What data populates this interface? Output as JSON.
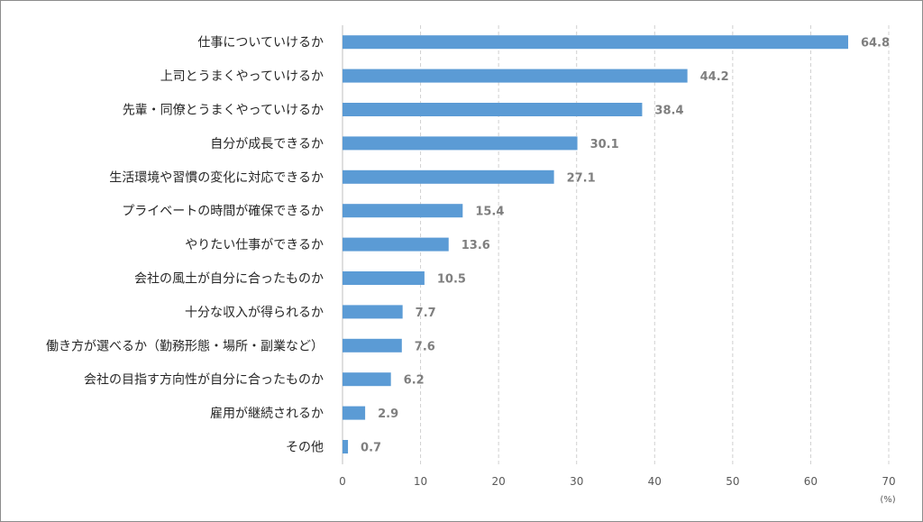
{
  "chart_data": {
    "type": "bar",
    "orientation": "horizontal",
    "categories": [
      "仕事についていけるか",
      "上司とうまくやっていけるか",
      "先輩・同僚とうまくやっていけるか",
      "自分が成長できるか",
      "生活環境や習慣の変化に対応できるか",
      "プライベートの時間が確保できるか",
      "やりたい仕事ができるか",
      "会社の風土が自分に合ったものか",
      "十分な収入が得られるか",
      "働き方が選べるか（勤務形態・場所・副業など）",
      "会社の目指す方向性が自分に合ったものか",
      "雇用が継続されるか",
      "その他"
    ],
    "values": [
      64.8,
      44.2,
      38.4,
      30.1,
      27.1,
      15.4,
      13.6,
      10.5,
      7.7,
      7.6,
      6.2,
      2.9,
      0.7
    ],
    "value_labels": [
      "64.8",
      "44.2",
      "38.4",
      "30.1",
      "27.1",
      "15.4",
      "13.6",
      "10.5",
      "7.7",
      "7.6",
      "6.2",
      "2.9",
      "0.7"
    ],
    "xlim": [
      0,
      70
    ],
    "xticks": [
      0,
      10,
      20,
      30,
      40,
      50,
      60,
      70
    ],
    "xtick_labels": [
      "0",
      "10",
      "20",
      "30",
      "40",
      "50",
      "60",
      "70"
    ],
    "unit_label": "(%)",
    "grid": "vertical dashed",
    "bar_color": "#5b9bd5",
    "value_label_color": "#7f7f7f"
  }
}
